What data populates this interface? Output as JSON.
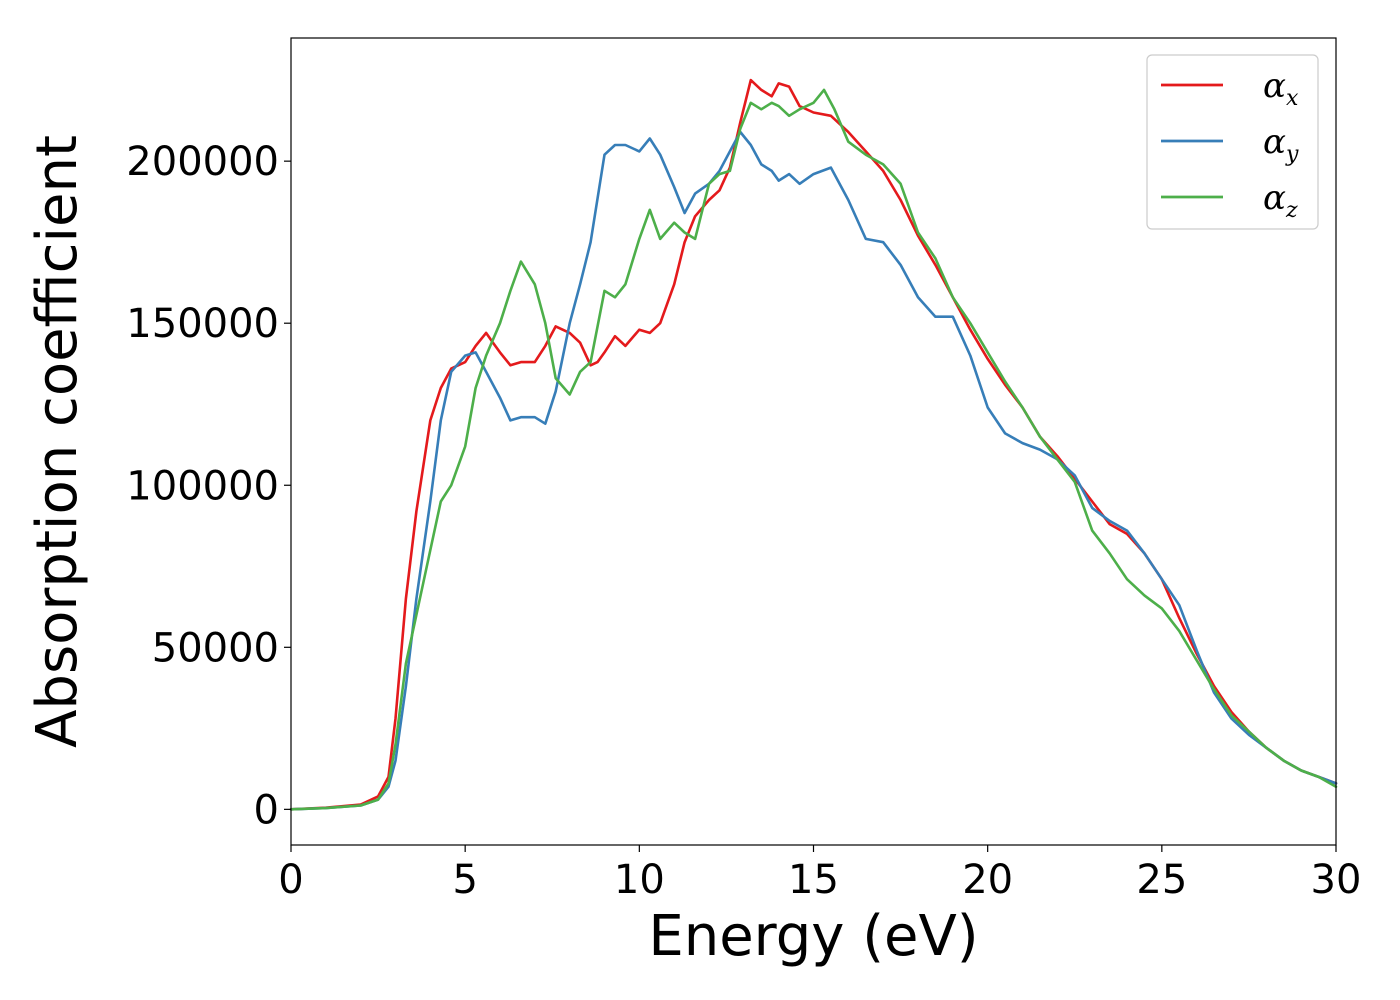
{
  "chart_data": {
    "type": "line",
    "xlabel": "Energy (eV)",
    "ylabel": "Absorption coefficient",
    "xlim": [
      0,
      30
    ],
    "ylim": [
      -11000,
      238000
    ],
    "xticks": [
      0,
      5,
      10,
      15,
      20,
      25,
      30
    ],
    "yticks": [
      0,
      50000,
      100000,
      150000,
      200000
    ],
    "xtick_labels": [
      "0",
      "5",
      "10",
      "15",
      "20",
      "25",
      "30"
    ],
    "ytick_labels": [
      "0",
      "50000",
      "100000",
      "150000",
      "200000"
    ],
    "grid": false,
    "legend_position": "top-right",
    "legend": [
      {
        "symbol": "α",
        "subscript": "x"
      },
      {
        "symbol": "α",
        "subscript": "y"
      },
      {
        "symbol": "α",
        "subscript": "z"
      }
    ],
    "series": [
      {
        "color": "#e41a1c",
        "x": [
          0,
          1,
          2,
          2.5,
          2.8,
          3.0,
          3.3,
          3.6,
          4.0,
          4.3,
          4.6,
          5.0,
          5.3,
          5.6,
          5.8,
          6.0,
          6.3,
          6.6,
          7.0,
          7.3,
          7.6,
          8.0,
          8.3,
          8.6,
          8.8,
          9.0,
          9.3,
          9.6,
          10.0,
          10.3,
          10.6,
          11.0,
          11.3,
          11.6,
          12.0,
          12.3,
          12.6,
          12.9,
          13.2,
          13.5,
          13.8,
          14.0,
          14.3,
          14.6,
          15.0,
          15.5,
          16.0,
          16.5,
          17.0,
          17.5,
          18.0,
          18.5,
          19.0,
          19.5,
          20.0,
          20.5,
          21.0,
          21.5,
          22.0,
          22.5,
          23.0,
          23.5,
          24.0,
          24.5,
          25.0,
          25.5,
          26.0,
          26.5,
          27.0,
          27.5,
          28.0,
          28.5,
          29.0,
          29.5,
          30.0
        ],
        "y": [
          0,
          500,
          1500,
          4000,
          10000,
          28000,
          65000,
          92000,
          120000,
          130000,
          136000,
          138000,
          143000,
          147000,
          144000,
          141000,
          137000,
          138000,
          138000,
          143000,
          149000,
          147000,
          144000,
          137000,
          138000,
          141000,
          146000,
          143000,
          148000,
          147000,
          150000,
          162000,
          175000,
          183000,
          188000,
          191000,
          198000,
          212000,
          225000,
          222000,
          220000,
          224000,
          223000,
          217000,
          215000,
          214000,
          209000,
          203000,
          197000,
          188000,
          177000,
          168000,
          158000,
          148000,
          139000,
          131000,
          124000,
          115000,
          109000,
          102000,
          95000,
          88000,
          85000,
          79000,
          71000,
          59000,
          48000,
          38000,
          30000,
          24000,
          19000,
          15000,
          12000,
          10000,
          8000
        ]
      },
      {
        "color": "#377eb8",
        "x": [
          0,
          1,
          2,
          2.5,
          2.8,
          3.0,
          3.3,
          3.6,
          4.0,
          4.3,
          4.6,
          5.0,
          5.3,
          5.6,
          6.0,
          6.3,
          6.6,
          7.0,
          7.3,
          7.6,
          8.0,
          8.3,
          8.6,
          9.0,
          9.3,
          9.6,
          10.0,
          10.3,
          10.6,
          11.0,
          11.3,
          11.6,
          12.0,
          12.3,
          12.6,
          12.9,
          13.2,
          13.5,
          13.8,
          14.0,
          14.3,
          14.6,
          15.0,
          15.5,
          16.0,
          16.5,
          17.0,
          17.5,
          18.0,
          18.5,
          19.0,
          19.5,
          20.0,
          20.5,
          21.0,
          21.5,
          22.0,
          22.5,
          23.0,
          23.5,
          24.0,
          24.5,
          25.0,
          25.5,
          26.0,
          26.5,
          27.0,
          27.5,
          28.0,
          28.5,
          29.0,
          29.5,
          30.0
        ],
        "y": [
          0,
          400,
          1200,
          3000,
          7000,
          15000,
          38000,
          65000,
          95000,
          120000,
          135000,
          140000,
          141000,
          135000,
          127000,
          120000,
          121000,
          121000,
          119000,
          129000,
          150000,
          162000,
          175000,
          202000,
          205000,
          205000,
          203000,
          207000,
          202000,
          192000,
          184000,
          190000,
          193000,
          197000,
          203000,
          209000,
          205000,
          199000,
          197000,
          194000,
          196000,
          193000,
          196000,
          198000,
          188000,
          176000,
          175000,
          168000,
          158000,
          152000,
          152000,
          140000,
          124000,
          116000,
          113000,
          111000,
          108000,
          103000,
          93000,
          89000,
          86000,
          79000,
          71000,
          63000,
          49000,
          36000,
          28000,
          23000,
          19000,
          15000,
          12000,
          10000,
          8000
        ]
      },
      {
        "color": "#4daf4a",
        "x": [
          0,
          1,
          2,
          2.5,
          2.8,
          3.0,
          3.3,
          3.6,
          4.0,
          4.3,
          4.6,
          5.0,
          5.3,
          5.6,
          6.0,
          6.3,
          6.6,
          7.0,
          7.3,
          7.6,
          8.0,
          8.3,
          8.6,
          9.0,
          9.3,
          9.6,
          10.0,
          10.3,
          10.6,
          11.0,
          11.3,
          11.6,
          12.0,
          12.3,
          12.6,
          12.9,
          13.2,
          13.5,
          13.8,
          14.0,
          14.3,
          14.6,
          15.0,
          15.3,
          15.6,
          16.0,
          16.5,
          17.0,
          17.5,
          18.0,
          18.5,
          19.0,
          19.5,
          20.0,
          20.5,
          21.0,
          21.5,
          22.0,
          22.5,
          23.0,
          23.5,
          24.0,
          24.5,
          25.0,
          25.5,
          26.0,
          26.5,
          27.0,
          27.5,
          28.0,
          28.5,
          29.0,
          29.5,
          30.0
        ],
        "y": [
          0,
          400,
          1200,
          3000,
          8000,
          20000,
          45000,
          60000,
          80000,
          95000,
          100000,
          112000,
          130000,
          140000,
          150000,
          160000,
          169000,
          162000,
          150000,
          133000,
          128000,
          135000,
          138000,
          160000,
          158000,
          162000,
          176000,
          185000,
          176000,
          181000,
          178000,
          176000,
          193000,
          196000,
          197000,
          210000,
          218000,
          216000,
          218000,
          217000,
          214000,
          216000,
          218000,
          222000,
          216000,
          206000,
          202000,
          199000,
          193000,
          178000,
          170000,
          158000,
          150000,
          141000,
          132000,
          124000,
          115000,
          108000,
          101000,
          86000,
          79000,
          71000,
          66000,
          62000,
          55000,
          46000,
          37000,
          29000,
          24000,
          19000,
          15000,
          12000,
          10000,
          7000
        ]
      }
    ]
  }
}
